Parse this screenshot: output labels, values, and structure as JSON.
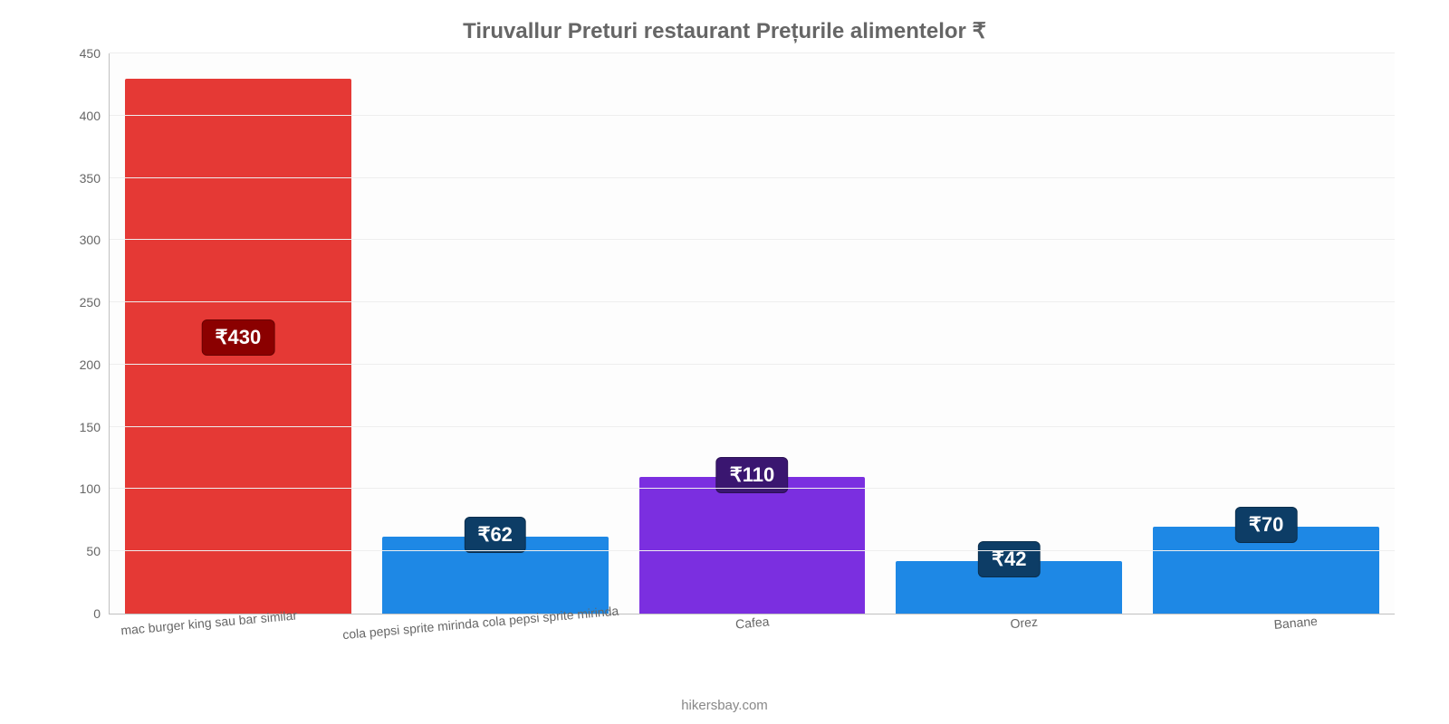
{
  "chart": {
    "type": "bar",
    "title": "Tiruvallur Preturi restaurant Prețurile alimentelor ₹",
    "title_fontsize": 24,
    "title_color": "#666666",
    "background_color": "#fdfdfd",
    "page_background": "#ffffff",
    "grid_color": "#eeeeee",
    "axis_color": "#c0c0c0",
    "tick_label_color": "#666666",
    "tick_fontsize": 14,
    "value_label_fontsize": 22,
    "bar_width_pct": 88,
    "ylim": [
      0,
      450
    ],
    "ytick_step": 50,
    "yticks": [
      0,
      50,
      100,
      150,
      200,
      250,
      300,
      350,
      400,
      450
    ],
    "categories": [
      "mac burger king sau bar similar",
      "cola pepsi sprite mirinda cola pepsi sprite mirinda",
      "Cafea",
      "Orez",
      "Banane"
    ],
    "values": [
      430,
      62,
      110,
      42,
      70
    ],
    "value_labels": [
      "₹430",
      "₹62",
      "₹110",
      "₹42",
      "₹70"
    ],
    "bar_colors": [
      "#e53935",
      "#1e88e5",
      "#7b2fe0",
      "#1e88e5",
      "#1e88e5"
    ],
    "label_bg_colors": [
      "#8b0000",
      "#0d3d66",
      "#3a1670",
      "#0d3d66",
      "#0d3d66"
    ],
    "attribution": "hikersbay.com",
    "attribution_color": "#888888"
  }
}
